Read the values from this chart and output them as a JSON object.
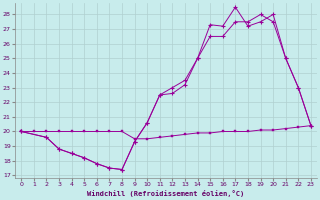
{
  "xlabel": "Windchill (Refroidissement éolien,°C)",
  "background_color": "#c8ecec",
  "grid_color": "#b0d0d0",
  "line_color": "#990099",
  "xlim": [
    -0.5,
    23.5
  ],
  "ylim": [
    16.8,
    28.8
  ],
  "xticks": [
    0,
    1,
    2,
    3,
    4,
    5,
    6,
    7,
    8,
    9,
    10,
    11,
    12,
    13,
    14,
    15,
    16,
    17,
    18,
    19,
    20,
    21,
    22,
    23
  ],
  "yticks": [
    17,
    18,
    19,
    20,
    21,
    22,
    23,
    24,
    25,
    26,
    27,
    28
  ],
  "line1_x": [
    0,
    1,
    2,
    3,
    4,
    5,
    6,
    7,
    8,
    9,
    10,
    11,
    12,
    13,
    14,
    15,
    16,
    17,
    18,
    19,
    20,
    21,
    22,
    23
  ],
  "line1_y": [
    20.0,
    20.0,
    20.0,
    20.0,
    20.0,
    20.0,
    20.0,
    20.0,
    20.0,
    19.5,
    19.5,
    19.6,
    19.7,
    19.8,
    19.9,
    19.9,
    20.0,
    20.0,
    20.0,
    20.1,
    20.1,
    20.2,
    20.3,
    20.4
  ],
  "line2_x": [
    0,
    2,
    3,
    4,
    5,
    6,
    7,
    8,
    9,
    10,
    11,
    12,
    13,
    14,
    15,
    16,
    17,
    18,
    19,
    20,
    21,
    22,
    23
  ],
  "line2_y": [
    20.0,
    19.6,
    18.8,
    18.5,
    18.2,
    17.8,
    17.5,
    17.4,
    19.3,
    20.6,
    22.5,
    22.6,
    23.2,
    25.0,
    27.3,
    27.2,
    28.5,
    27.2,
    27.5,
    28.0,
    25.0,
    23.0,
    20.4
  ],
  "line3_x": [
    0,
    2,
    3,
    4,
    5,
    6,
    7,
    8,
    9,
    10,
    11,
    12,
    13,
    14,
    15,
    16,
    17,
    18,
    19,
    20,
    21,
    22,
    23
  ],
  "line3_y": [
    20.0,
    19.6,
    18.8,
    18.5,
    18.2,
    17.8,
    17.5,
    17.4,
    19.3,
    20.6,
    22.5,
    23.0,
    23.5,
    25.0,
    26.5,
    26.5,
    27.5,
    27.5,
    28.0,
    27.5,
    25.0,
    23.0,
    20.4
  ]
}
